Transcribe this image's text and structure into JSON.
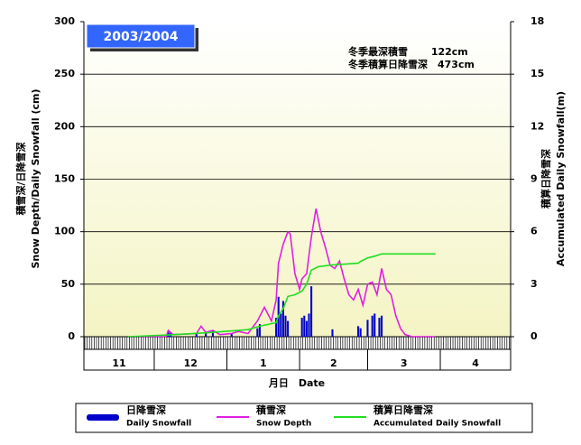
{
  "chart_data": {
    "type": "combo",
    "title": "2003/2004",
    "annotations": [
      "冬季最深積雪　　 122cm",
      "冬季積算日降雪深　473cm"
    ],
    "ylabel": [
      "積雪深/日降雪深",
      "Snow Depth/Daily Snowfall (cm)"
    ],
    "y2label": [
      "積算日降雪深",
      "Accumulated Daily Snowfall(m)"
    ],
    "xlabel": "月日　Date",
    "xlim": [
      0,
      182
    ],
    "ylim": [
      0,
      300
    ],
    "yticks": [
      0,
      50,
      100,
      150,
      200,
      250,
      300
    ],
    "y2lim": [
      0,
      18
    ],
    "y2ticks": [
      0,
      3,
      6,
      9,
      12,
      15,
      18
    ],
    "grid": true,
    "months": [
      {
        "label": "11",
        "start": 0,
        "end": 30
      },
      {
        "label": "12",
        "start": 30,
        "end": 61
      },
      {
        "label": "1",
        "start": 61,
        "end": 92
      },
      {
        "label": "2",
        "start": 92,
        "end": 121
      },
      {
        "label": "3",
        "start": 121,
        "end": 152
      },
      {
        "label": "4",
        "start": 152,
        "end": 182
      }
    ],
    "series": [
      {
        "name": "日降雪深",
        "name_en": "Daily Snowfall",
        "type": "bar",
        "color": "#0000cc",
        "x": [
          36,
          37,
          48,
          52,
          55,
          63,
          74,
          75,
          82,
          83,
          84,
          85,
          86,
          87,
          93,
          94,
          95,
          96,
          97,
          106,
          117,
          118,
          121,
          123,
          124,
          126,
          127
        ],
        "values": [
          6,
          4,
          3,
          3,
          6,
          3,
          8,
          12,
          18,
          38,
          22,
          34,
          20,
          15,
          18,
          20,
          15,
          22,
          48,
          7,
          10,
          8,
          16,
          20,
          22,
          18,
          20
        ]
      },
      {
        "name": "積雪深",
        "name_en": "Snow Depth",
        "type": "line",
        "color": "#e020e0",
        "x": [
          19,
          35,
          36,
          38,
          48,
          50,
          52,
          55,
          58,
          63,
          66,
          70,
          74,
          77,
          80,
          82,
          83,
          85,
          87,
          88,
          90,
          92,
          93,
          95,
          97,
          99,
          101,
          103,
          105,
          107,
          109,
          111,
          113,
          115,
          117,
          119,
          121,
          123,
          125,
          127,
          129,
          131,
          133,
          135,
          137,
          140,
          150
        ],
        "values": [
          0,
          0,
          6,
          2,
          3,
          10,
          4,
          6,
          2,
          3,
          5,
          3,
          15,
          28,
          15,
          35,
          70,
          88,
          100,
          98,
          60,
          45,
          55,
          60,
          95,
          122,
          100,
          85,
          68,
          65,
          72,
          55,
          40,
          35,
          45,
          30,
          50,
          52,
          40,
          65,
          45,
          40,
          20,
          8,
          2,
          0,
          0
        ]
      },
      {
        "name": "積算日降雪深",
        "name_en": "Accumulated Daily Snowfall",
        "type": "line",
        "axis": "y2",
        "color": "#22dd22",
        "x": [
          19,
          36,
          50,
          60,
          70,
          75,
          82,
          83,
          85,
          87,
          90,
          93,
          95,
          97,
          100,
          106,
          117,
          118,
          121,
          124,
          127,
          150
        ],
        "values": [
          0,
          0.1,
          0.2,
          0.3,
          0.4,
          0.6,
          0.8,
          1.2,
          1.6,
          2.3,
          2.4,
          2.6,
          3.0,
          3.8,
          4.0,
          4.1,
          4.2,
          4.3,
          4.5,
          4.6,
          4.73,
          4.73
        ]
      }
    ]
  }
}
